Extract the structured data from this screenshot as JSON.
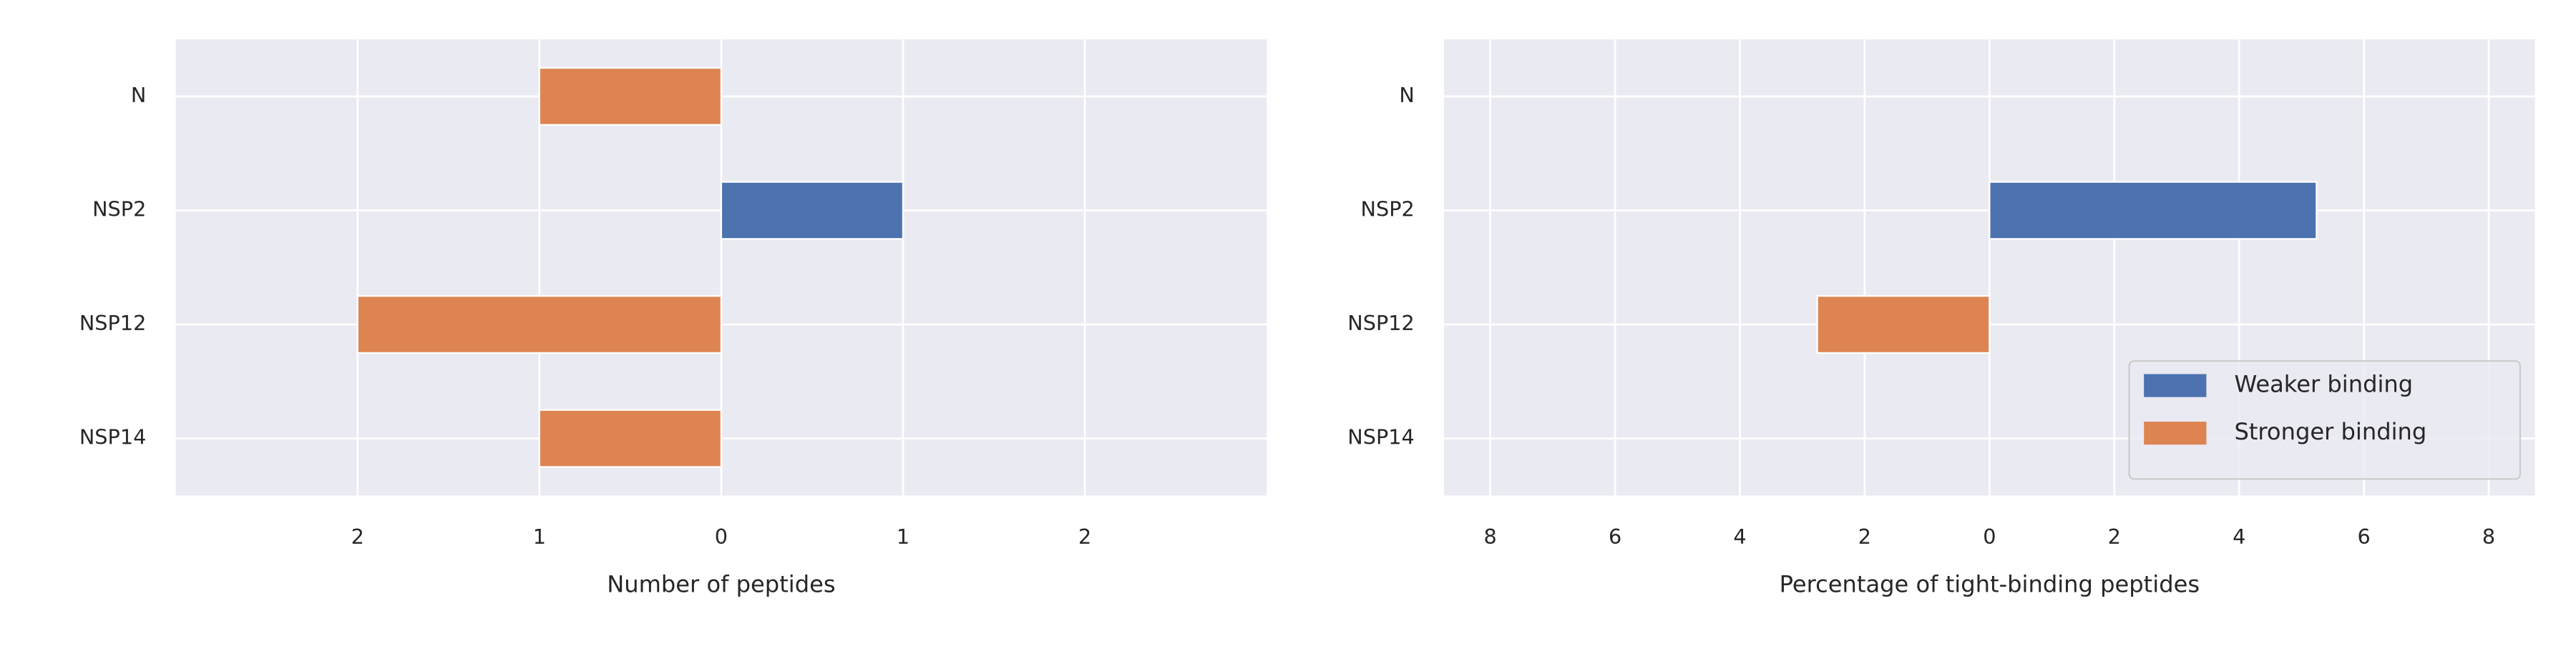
{
  "chart_data": [
    {
      "type": "bar",
      "orientation": "horizontal",
      "categories": [
        "N",
        "NSP2",
        "NSP12",
        "NSP14"
      ],
      "series": [
        {
          "color": "#4c72b0",
          "values": [
            0,
            1,
            0,
            0
          ]
        },
        {
          "color": "#dd8452",
          "values": [
            -1,
            0,
            -2,
            -1
          ]
        }
      ],
      "xlabel": "Number of peptides",
      "xlim": [
        -3,
        3
      ],
      "xticks": [
        {
          "value": -2,
          "label": "2"
        },
        {
          "value": -1,
          "label": "1"
        },
        0,
        1,
        2
      ],
      "grid": true
    },
    {
      "type": "bar",
      "orientation": "horizontal",
      "categories": [
        "N",
        "NSP2",
        "NSP12",
        "NSP14"
      ],
      "series": [
        {
          "name": "Weaker binding",
          "color": "#4c72b0",
          "values": [
            0,
            5.24,
            0,
            0
          ]
        },
        {
          "name": "Stronger binding",
          "color": "#dd8452",
          "values": [
            0,
            0,
            -2.76,
            0
          ]
        }
      ],
      "xlabel": "Percentage of tight-binding peptides",
      "xlim": [
        -8.74,
        8.74
      ],
      "xticks": [
        {
          "value": -8,
          "label": "8"
        },
        {
          "value": -6,
          "label": "6"
        },
        {
          "value": -4,
          "label": "4"
        },
        {
          "value": -2,
          "label": "2"
        },
        0,
        2,
        4,
        6,
        8
      ],
      "grid": true,
      "legend": "lower right"
    }
  ]
}
